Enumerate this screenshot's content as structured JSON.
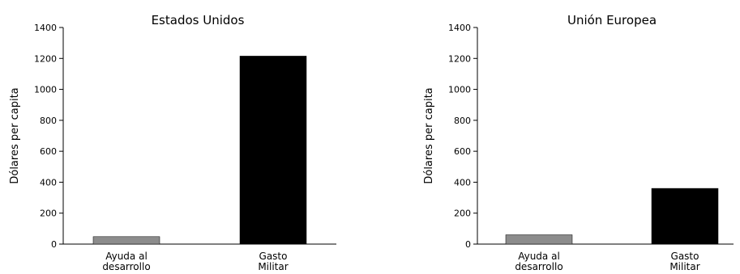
{
  "chart_data": [
    {
      "type": "bar",
      "title": "Estados Unidos",
      "ylabel": "Dólares per capita",
      "xlabel": "",
      "ylim": [
        0,
        1400
      ],
      "yticks": [
        0,
        200,
        400,
        600,
        800,
        1000,
        1200,
        1400
      ],
      "categories": [
        [
          "Ayuda al",
          "desarrollo"
        ],
        [
          "Gasto",
          "Militar"
        ]
      ],
      "values": [
        48,
        1215
      ],
      "colors": [
        "#8c8c8c",
        "#000000"
      ],
      "grid": false,
      "legend": "none"
    },
    {
      "type": "bar",
      "title": "Unión Europea",
      "ylabel": "Dólares per capita",
      "xlabel": "",
      "ylim": [
        0,
        1400
      ],
      "yticks": [
        0,
        200,
        400,
        600,
        800,
        1000,
        1200,
        1400
      ],
      "categories": [
        [
          "Ayuda al",
          "desarrollo"
        ],
        [
          "Gasto",
          "Militar"
        ]
      ],
      "values": [
        60,
        360
      ],
      "colors": [
        "#8c8c8c",
        "#000000"
      ],
      "grid": false,
      "legend": "none"
    }
  ]
}
